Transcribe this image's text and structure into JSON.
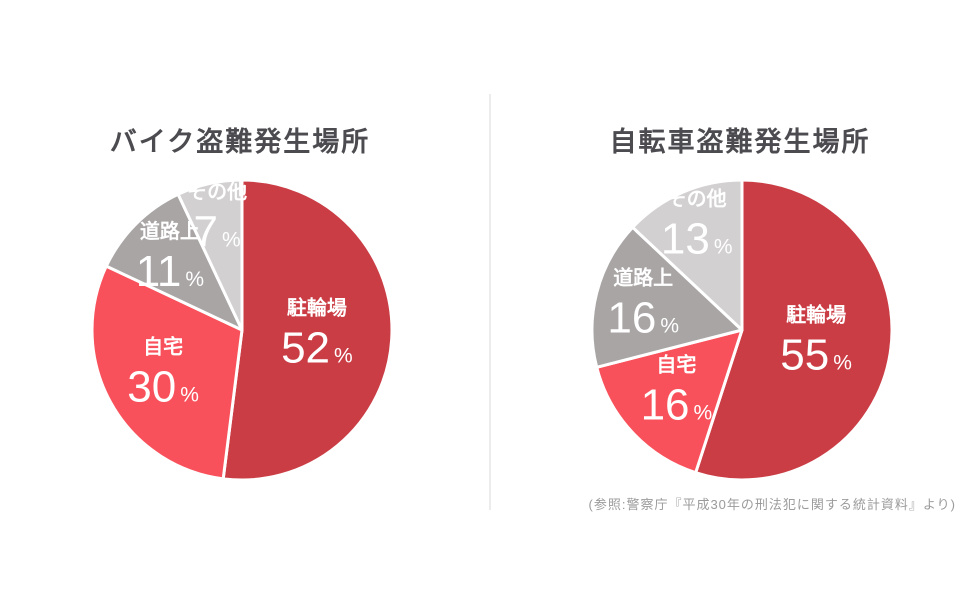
{
  "page": {
    "background": "#FFFFFF",
    "divider_color": "#ECECEC",
    "title_color": "#4B4B50",
    "label_color": "#FFFFFF",
    "source_color": "#9B9B9B",
    "source_note": "(参照:警察庁『平成30年の刑法犯に関する統計資料』より)"
  },
  "chart_data": [
    {
      "type": "pie",
      "title": "バイク盗難発生場所",
      "categories": [
        "駐輪場",
        "自宅",
        "道路上",
        "その他"
      ],
      "values": [
        52,
        30,
        11,
        7
      ],
      "unit": "%",
      "slice_colors": [
        "#CB3D45",
        "#F8515B",
        "#A9A5A5",
        "#D2D0D0"
      ],
      "start_angle": "12-o'clock",
      "direction": "clockwise",
      "label_style": "inside-white"
    },
    {
      "type": "pie",
      "title": "自転車盗難発生場所",
      "categories": [
        "駐輪場",
        "自宅",
        "道路上",
        "その他"
      ],
      "values": [
        55,
        16,
        16,
        13
      ],
      "unit": "%",
      "slice_colors": [
        "#CB3D45",
        "#F8515B",
        "#A9A5A5",
        "#D2D0D0"
      ],
      "start_angle": "12-o'clock",
      "direction": "clockwise",
      "label_style": "inside-white"
    }
  ]
}
